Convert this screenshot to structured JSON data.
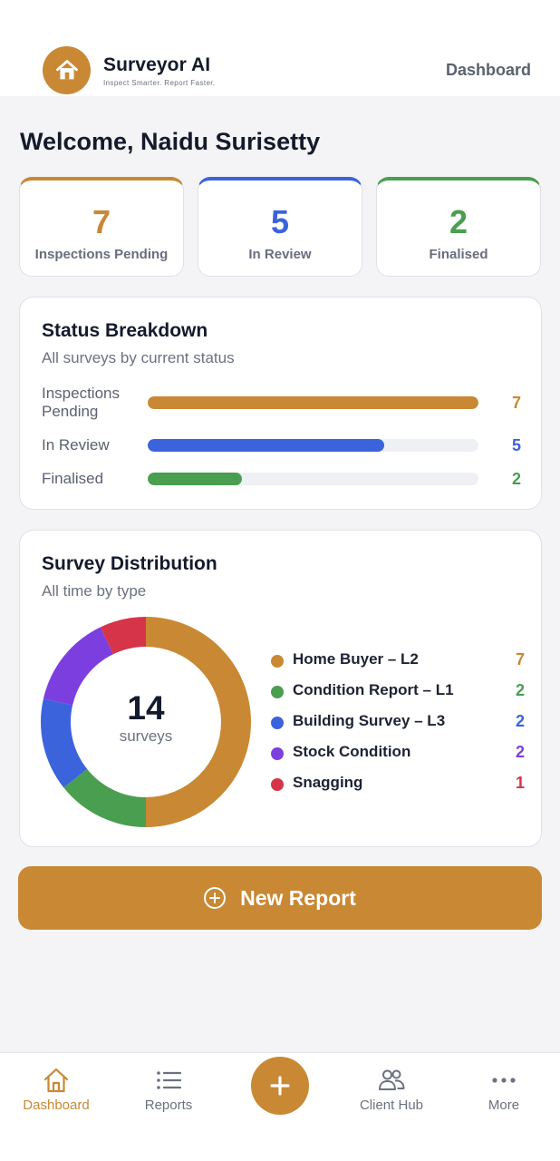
{
  "colors": {
    "brand": "#c98833",
    "pending": "#c98833",
    "review": "#3b63dc",
    "finalised": "#4a9e50",
    "stock": "#7d3ee0",
    "snagging": "#d63448"
  },
  "header": {
    "brand_name": "Surveyor AI",
    "tagline": "Inspect Smarter. Report Faster.",
    "nav_label": "Dashboard",
    "logo_icon": "home-icon"
  },
  "welcome": "Welcome, Naidu Surisetty",
  "stats": [
    {
      "value": "7",
      "label": "Inspections Pending",
      "color": "#c98833"
    },
    {
      "value": "5",
      "label": "In Review",
      "color": "#3b63dc"
    },
    {
      "value": "2",
      "label": "Finalised",
      "color": "#4a9e50"
    }
  ],
  "status_breakdown": {
    "title": "Status Breakdown",
    "subtitle": "All surveys by current status",
    "max": 7,
    "rows": [
      {
        "label": "Inspections Pending",
        "value": 7,
        "color": "#c98833"
      },
      {
        "label": "In Review",
        "value": 5,
        "color": "#3b63dc"
      },
      {
        "label": "Finalised",
        "value": 2,
        "color": "#4a9e50"
      }
    ]
  },
  "survey_distribution": {
    "title": "Survey Distribution",
    "subtitle": "All time by type",
    "total": "14",
    "total_unit": "surveys"
  },
  "chart_data": {
    "type": "pie",
    "categories": [
      "Home Buyer – L2",
      "Condition Report – L1",
      "Building Survey – L3",
      "Stock Condition",
      "Snagging"
    ],
    "values": [
      7,
      2,
      2,
      2,
      1
    ],
    "colors": [
      "#c98833",
      "#4a9e50",
      "#3b63dc",
      "#7d3ee0",
      "#d63448"
    ],
    "title": "",
    "donut": true
  },
  "actions": {
    "new_report": "New Report"
  },
  "bottom_nav": [
    {
      "label": "Dashboard",
      "icon": "home-icon",
      "active": true
    },
    {
      "label": "Reports",
      "icon": "list-icon",
      "active": false
    },
    {
      "label": "Client Hub",
      "icon": "users-icon",
      "active": false
    },
    {
      "label": "More",
      "icon": "more-dots-icon",
      "active": false
    }
  ],
  "fab_icon": "plus-icon"
}
